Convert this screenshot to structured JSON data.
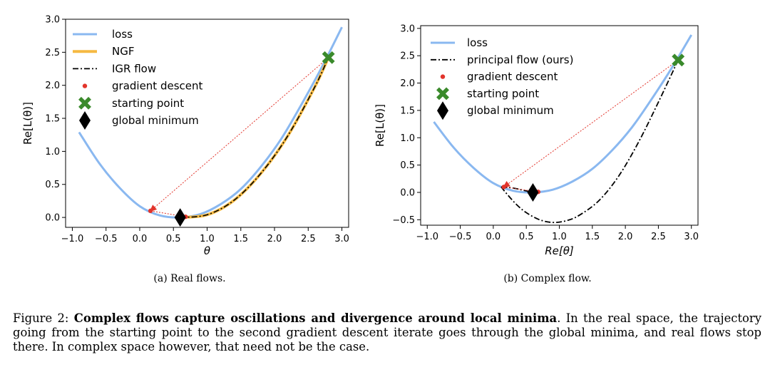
{
  "chart_data": [
    {
      "type": "line",
      "subcaption": "(a) Real flows.",
      "xlabel": "θ",
      "ylabel": "Re[L(θ)]",
      "xlim": [
        -1.1,
        3.1
      ],
      "ylim": [
        -0.15,
        3.0
      ],
      "xticks": [
        -1.0,
        -0.5,
        0.0,
        0.5,
        1.0,
        1.5,
        2.0,
        2.5,
        3.0
      ],
      "xtick_labels": [
        "−1.0",
        "−0.5",
        "0.0",
        "0.5",
        "1.0",
        "1.5",
        "2.0",
        "2.5",
        "3.0"
      ],
      "yticks": [
        0.0,
        0.5,
        1.0,
        1.5,
        2.0,
        2.5,
        3.0
      ],
      "ytick_labels": [
        "0.0",
        "0.5",
        "1.0",
        "1.5",
        "2.0",
        "2.5",
        "3.0"
      ],
      "legend": [
        "loss",
        "NGF",
        "IGR flow",
        "gradient descent",
        "starting point",
        "global minimum"
      ],
      "legend_location": "top-left",
      "loss_curve": {
        "name": "loss",
        "x": [
          -0.9,
          -0.6,
          -0.3,
          0.0,
          0.3,
          0.6,
          0.9,
          1.2,
          1.5,
          1.8,
          2.1,
          2.4,
          2.7,
          3.0
        ],
        "y": [
          1.29,
          0.82,
          0.45,
          0.17,
          0.03,
          0.0,
          0.05,
          0.2,
          0.43,
          0.77,
          1.19,
          1.71,
          2.27,
          2.88
        ]
      },
      "ngf_flow": {
        "name": "NGF",
        "x": [
          0.6,
          1.0,
          1.4,
          1.8,
          2.2,
          2.6,
          2.8
        ],
        "y": [
          0.0,
          0.04,
          0.26,
          0.67,
          1.24,
          1.98,
          2.42
        ]
      },
      "igr_flow": {
        "name": "IGR flow",
        "x": [
          0.6,
          1.0,
          1.4,
          1.8,
          2.2,
          2.6,
          2.8
        ],
        "y": [
          0.0,
          0.04,
          0.26,
          0.67,
          1.24,
          1.98,
          2.42
        ]
      },
      "gradient_descent": {
        "name": "gradient descent",
        "x": [
          2.8,
          0.16,
          0.68
        ],
        "y": [
          2.42,
          0.1,
          0.01
        ]
      },
      "starting_point": {
        "name": "starting point",
        "x": 2.8,
        "y": 2.42
      },
      "global_minimum": {
        "name": "global minimum",
        "x": 0.6,
        "y": 0.0
      }
    },
    {
      "type": "line",
      "subcaption": "(b) Complex flow.",
      "xlabel": "Re[θ]",
      "ylabel": "Re[L(θ)]",
      "xlim": [
        -1.1,
        3.1
      ],
      "ylim": [
        -0.6,
        3.05
      ],
      "xticks": [
        -1.0,
        -0.5,
        0.0,
        0.5,
        1.0,
        1.5,
        2.0,
        2.5,
        3.0
      ],
      "xtick_labels": [
        "−1.0",
        "−0.5",
        "0.0",
        "0.5",
        "1.0",
        "1.5",
        "2.0",
        "2.5",
        "3.0"
      ],
      "yticks": [
        -0.5,
        0.0,
        0.5,
        1.0,
        1.5,
        2.0,
        2.5,
        3.0
      ],
      "ytick_labels": [
        "−0.5",
        "0.0",
        "0.5",
        "1.0",
        "1.5",
        "2.0",
        "2.5",
        "3.0"
      ],
      "legend": [
        "loss",
        "principal flow (ours)",
        "gradient descent",
        "starting point",
        "global minimum"
      ],
      "legend_location": "top-left",
      "loss_curve": {
        "name": "loss",
        "x": [
          -0.9,
          -0.6,
          -0.3,
          0.0,
          0.3,
          0.6,
          0.9,
          1.2,
          1.5,
          1.8,
          2.1,
          2.4,
          2.7,
          3.0
        ],
        "y": [
          1.29,
          0.82,
          0.45,
          0.17,
          0.03,
          0.0,
          0.05,
          0.2,
          0.43,
          0.77,
          1.19,
          1.71,
          2.27,
          2.88
        ]
      },
      "principal_flow": {
        "name": "principal flow (ours)",
        "x": [
          2.8,
          2.5,
          2.2,
          1.9,
          1.6,
          1.3,
          1.1,
          0.9,
          0.7,
          0.5,
          0.35,
          0.2,
          0.12
        ],
        "y": [
          2.42,
          1.65,
          0.92,
          0.3,
          -0.15,
          -0.42,
          -0.52,
          -0.55,
          -0.5,
          -0.37,
          -0.22,
          -0.02,
          0.1
        ]
      },
      "principal_flow_segment": {
        "x": [
          0.12,
          0.3,
          0.45,
          0.6
        ],
        "y": [
          0.1,
          0.08,
          0.04,
          0.0
        ]
      },
      "gradient_descent": {
        "name": "gradient descent",
        "x": [
          2.8,
          0.16,
          0.68
        ],
        "y": [
          2.42,
          0.1,
          0.01
        ]
      },
      "starting_point": {
        "name": "starting point",
        "x": 2.8,
        "y": 2.42
      },
      "global_minimum": {
        "name": "global minimum",
        "x": 0.6,
        "y": 0.0
      }
    }
  ],
  "colors": {
    "loss": "#8ab8f0",
    "ngf": "#f5b942",
    "flow": "#000000",
    "gradient_descent": "#e2342b",
    "starting_point": "#3a8a2b",
    "global_minimum": "#000000"
  },
  "caption": {
    "label": "Figure 2:",
    "bold": "Complex flows capture oscillations and divergence around local minima",
    "rest": ". In the real space, the trajectory going from the starting point to the second gradient descent iterate goes through the global minima, and real flows stop there. In complex space however, that need not be the case."
  }
}
